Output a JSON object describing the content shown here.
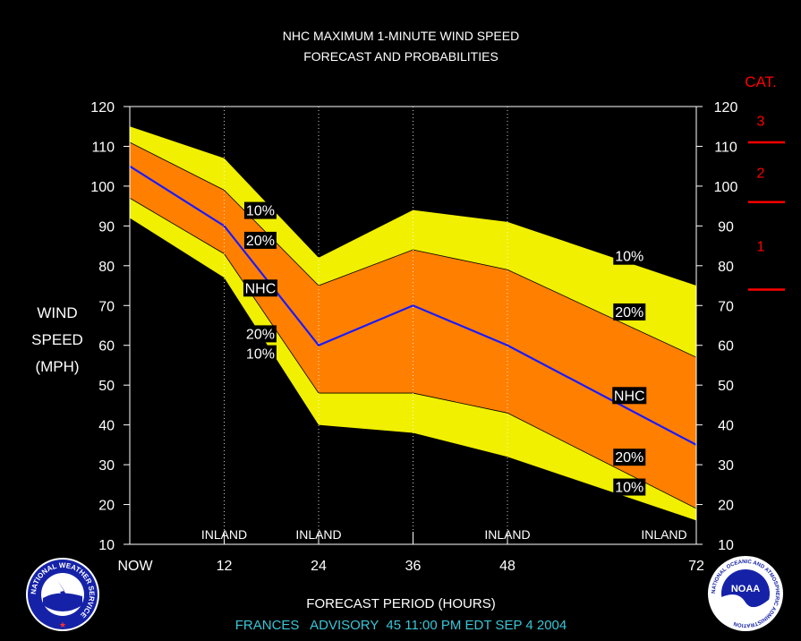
{
  "colors": {
    "background": "#000000",
    "band_10": "#f0f000",
    "band_20": "#ff7f00",
    "nhc_line": "#1a1aff",
    "axes": "#ffffff",
    "category": "#ff0000",
    "advisory_text": "#39c5d6"
  },
  "chart_data": {
    "type": "area",
    "title": "NHC MAXIMUM 1-MINUTE WIND SPEED",
    "subtitle": "FORECAST AND PROBABILITIES",
    "xlabel": "FORECAST PERIOD (HOURS)",
    "ylabel_lines": [
      "WIND",
      "SPEED",
      "(MPH)"
    ],
    "ylim": [
      10,
      120
    ],
    "xlim": [
      0,
      72
    ],
    "y_ticks": [
      "10",
      "20",
      "30",
      "40",
      "50",
      "60",
      "70",
      "80",
      "90",
      "100",
      "110",
      "120"
    ],
    "x_ticks": [
      {
        "x": 0,
        "label": "NOW"
      },
      {
        "x": 12,
        "label": "12"
      },
      {
        "x": 24,
        "label": "24"
      },
      {
        "x": 36,
        "label": "36"
      },
      {
        "x": 48,
        "label": "48"
      },
      {
        "x": 72,
        "label": "72"
      }
    ],
    "x": [
      0,
      12,
      24,
      36,
      48,
      72
    ],
    "series": [
      {
        "name": "10%",
        "role": "upper_10",
        "values": [
          115,
          107,
          82,
          94,
          91,
          75
        ]
      },
      {
        "name": "20%",
        "role": "upper_20",
        "values": [
          111,
          99,
          75,
          84,
          79,
          57
        ]
      },
      {
        "name": "NHC",
        "role": "forecast",
        "values": [
          105,
          90,
          60,
          70,
          60,
          35
        ]
      },
      {
        "name": "20%",
        "role": "lower_20",
        "values": [
          97,
          83,
          48,
          48,
          43,
          19
        ]
      },
      {
        "name": "10%",
        "role": "lower_10",
        "values": [
          92,
          77,
          40,
          38,
          32,
          16
        ]
      }
    ],
    "band_labels": [
      {
        "text": "10%",
        "x": 16.6,
        "y": 94
      },
      {
        "text": "20%",
        "x": 16.6,
        "y": 86.5
      },
      {
        "text": "NHC",
        "x": 16.6,
        "y": 74.5
      },
      {
        "text": "20%",
        "x": 16.6,
        "y": 63
      },
      {
        "text": "10%",
        "x": 16.6,
        "y": 58
      },
      {
        "text": "10%",
        "x": 63.5,
        "y": 82.5
      },
      {
        "text": "20%",
        "x": 63.5,
        "y": 68.5
      },
      {
        "text": "NHC",
        "x": 63.5,
        "y": 47.5
      },
      {
        "text": "20%",
        "x": 63.5,
        "y": 32
      },
      {
        "text": "10%",
        "x": 63.5,
        "y": 24.5
      }
    ],
    "inland_markers": [
      {
        "x": 12,
        "label": "INLAND"
      },
      {
        "x": 24,
        "label": "INLAND"
      },
      {
        "x": 48,
        "label": "INLAND"
      },
      {
        "x": 72,
        "label": "INLAND"
      }
    ],
    "category_scale": {
      "title": "CAT.",
      "boundaries_mph": [
        74,
        96,
        111
      ],
      "labels": [
        {
          "text": "1",
          "y": 85
        },
        {
          "text": "2",
          "y": 103.5
        },
        {
          "text": "3",
          "y": 116.5
        }
      ]
    },
    "legend": "none"
  },
  "footer": {
    "advisory": "FRANCES   ADVISORY  45 11:00 PM EDT SEP 4 2004"
  },
  "logos": {
    "left": "nws-logo",
    "right": "noaa-logo",
    "left_ring_text": "NATIONAL WEATHER SERVICE",
    "right_ring_text": "NATIONAL OCEANIC AND ATMOSPHERIC ADMINISTRATION",
    "right_center_text": "NOAA"
  }
}
